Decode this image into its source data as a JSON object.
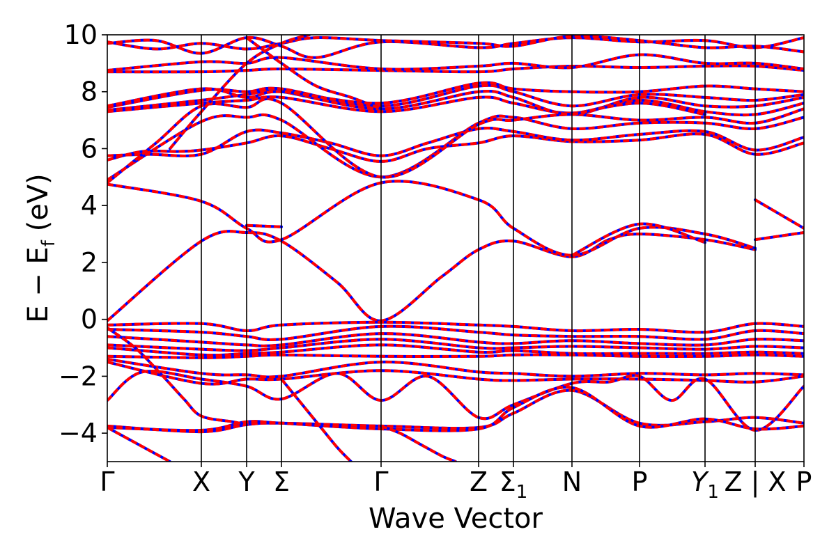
{
  "chart_data": {
    "type": "line",
    "title": "",
    "xlabel": "Wave Vector",
    "ylabel_main": "E − E",
    "ylabel_sub": "f",
    "ylabel_unit": "(eV)",
    "ylim": [
      -5,
      10
    ],
    "yticks": [
      {
        "value": -4,
        "label": "−4"
      },
      {
        "value": -2,
        "label": "−2"
      },
      {
        "value": 0,
        "label": "0"
      },
      {
        "value": 2,
        "label": "2"
      },
      {
        "value": 4,
        "label": "4"
      },
      {
        "value": 6,
        "label": "6"
      },
      {
        "value": 8,
        "label": "8"
      },
      {
        "value": 10,
        "label": "10"
      }
    ],
    "xlim": [
      0,
      1
    ],
    "xticks": [
      {
        "value": 0.0,
        "main": "Γ",
        "sub": ""
      },
      {
        "value": 0.135,
        "main": "X",
        "sub": ""
      },
      {
        "value": 0.2,
        "main": "Y",
        "sub": ""
      },
      {
        "value": 0.25,
        "main": "Σ",
        "sub": ""
      },
      {
        "value": 0.393,
        "main": "Γ",
        "sub": ""
      },
      {
        "value": 0.533,
        "main": "Z",
        "sub": ""
      },
      {
        "value": 0.583,
        "main": "Σ",
        "sub": "1"
      },
      {
        "value": 0.667,
        "main": "N",
        "sub": ""
      },
      {
        "value": 0.764,
        "main": "P",
        "sub": ""
      },
      {
        "value": 0.858,
        "main": "Y",
        "sub": "1",
        "italic": true
      },
      {
        "value": 0.93,
        "main": "Z | X",
        "sub": ""
      },
      {
        "value": 1.0,
        "main": "P",
        "sub": ""
      }
    ],
    "vlines": [
      0.135,
      0.2,
      0.25,
      0.393,
      0.533,
      0.583,
      0.667,
      0.764,
      0.858,
      0.93
    ],
    "colors": {
      "spin_up": "#ff0000",
      "spin_down": "#0000ff",
      "vline": "#000000",
      "axes": "#000000"
    },
    "series": [
      {
        "x": [
          0,
          0.135,
          0.2,
          0.25,
          0.33,
          0.393,
          0.48,
          0.533,
          0.583,
          0.667,
          0.72,
          0.764,
          0.858,
          0.93
        ],
        "y": [
          -0.05,
          2.75,
          3.05,
          2.75,
          1.3,
          -0.05,
          1.5,
          2.45,
          2.75,
          2.2,
          2.8,
          3.0,
          2.8,
          2.45
        ]
      },
      {
        "x": [
          0,
          0.135,
          0.2,
          0.25,
          0.393,
          0.533,
          0.583,
          0.667,
          0.764,
          0.858,
          0.93
        ],
        "y": [
          4.75,
          4.15,
          3.2,
          2.8,
          4.8,
          4.2,
          3.2,
          2.25,
          3.2,
          3.0,
          2.5
        ]
      },
      {
        "x": [
          0.2,
          0.25
        ],
        "y": [
          3.3,
          3.25
        ]
      },
      {
        "x": [
          0.667,
          0.764,
          0.858
        ],
        "y": [
          2.25,
          3.35,
          2.7
        ]
      },
      {
        "x": [
          0.93,
          1.0
        ],
        "y": [
          2.8,
          3.05
        ]
      },
      {
        "x": [
          0.93,
          1.0
        ],
        "y": [
          4.2,
          3.2
        ]
      },
      {
        "x": [
          0,
          0.135,
          0.2,
          0.25,
          0.393,
          0.533,
          0.583,
          0.667,
          0.764,
          0.858,
          0.93,
          1.0
        ],
        "y": [
          -0.2,
          -0.15,
          -0.4,
          -0.2,
          -0.1,
          -0.2,
          -0.25,
          -0.4,
          -0.35,
          -0.45,
          -0.15,
          -0.25
        ]
      },
      {
        "x": [
          0,
          0.135,
          0.2,
          0.25,
          0.393,
          0.533,
          0.583,
          0.667,
          0.764,
          0.858,
          0.93,
          1.0
        ],
        "y": [
          -0.35,
          -0.45,
          -0.6,
          -0.7,
          -0.25,
          -0.45,
          -0.55,
          -0.6,
          -0.6,
          -0.7,
          -0.4,
          -0.5
        ]
      },
      {
        "x": [
          0,
          0.135,
          0.2,
          0.25,
          0.393,
          0.533,
          0.583,
          0.667,
          0.764,
          0.858,
          0.93,
          1.0
        ],
        "y": [
          -0.6,
          -0.8,
          -0.9,
          -0.9,
          -0.5,
          -0.8,
          -0.85,
          -0.75,
          -0.85,
          -0.9,
          -0.7,
          -0.75
        ]
      },
      {
        "x": [
          0,
          0.135,
          0.2,
          0.25,
          0.393,
          0.533,
          0.583,
          0.667,
          0.764,
          0.858,
          0.93,
          1.0
        ],
        "y": [
          -0.9,
          -1.05,
          -1.1,
          -1.0,
          -0.7,
          -1.0,
          -1.0,
          -0.95,
          -1.0,
          -1.05,
          -0.95,
          -1.0
        ]
      },
      {
        "x": [
          0,
          0.135,
          0.2,
          0.25,
          0.393,
          0.533,
          0.583,
          0.667,
          0.764,
          0.858,
          0.93,
          1.0
        ],
        "y": [
          -1.0,
          -1.25,
          -1.2,
          -1.15,
          -0.9,
          -1.15,
          -1.1,
          -1.2,
          -1.2,
          -1.2,
          -1.15,
          -1.2
        ]
      },
      {
        "x": [
          0,
          0.135,
          0.2,
          0.25,
          0.393,
          0.533,
          0.583,
          0.667,
          0.764,
          0.858,
          0.93,
          1.0
        ],
        "y": [
          -1.3,
          -1.35,
          -1.3,
          -1.25,
          -1.3,
          -1.3,
          -1.25,
          -1.25,
          -1.3,
          -1.3,
          -1.25,
          -1.3
        ]
      },
      {
        "x": [
          0,
          0.135,
          0.2,
          0.25,
          0.393,
          0.533,
          0.583,
          0.667,
          0.764,
          0.858,
          0.93,
          1.0
        ],
        "y": [
          -1.4,
          -1.9,
          -1.95,
          -2.0,
          -1.5,
          -1.85,
          -1.9,
          -2.0,
          -1.9,
          -1.95,
          -1.9,
          -1.95
        ]
      },
      {
        "x": [
          0,
          0.135,
          0.2,
          0.25,
          0.393,
          0.533,
          0.583,
          0.667,
          0.764,
          0.858,
          0.93,
          1.0
        ],
        "y": [
          -1.5,
          -2.25,
          -2.1,
          -2.1,
          -1.8,
          -2.1,
          -2.15,
          -2.1,
          -2.1,
          -2.15,
          -2.2,
          -2.0
        ]
      },
      {
        "x": [
          0,
          0.05,
          0.135,
          0.2,
          0.25,
          0.33,
          0.393,
          0.46,
          0.533,
          0.583,
          0.667,
          0.72,
          0.764,
          0.81,
          0.858,
          0.93,
          1.0
        ],
        "y": [
          -2.85,
          -1.85,
          -2.1,
          -2.35,
          -2.8,
          -1.9,
          -2.85,
          -2.0,
          -3.45,
          -3.0,
          -2.25,
          -2.2,
          -2.0,
          -2.85,
          -2.1,
          -3.9,
          -2.35
        ]
      },
      {
        "x": [
          0,
          0.135,
          0.2,
          0.25,
          0.393,
          0.533,
          0.583,
          0.667,
          0.764,
          0.858,
          0.93,
          1.0
        ],
        "y": [
          -3.75,
          -3.95,
          -3.7,
          -3.65,
          -3.75,
          -3.8,
          -3.3,
          -2.5,
          -3.65,
          -3.6,
          -3.45,
          -3.65
        ]
      },
      {
        "x": [
          0,
          0.135,
          0.2,
          0.25,
          0.393,
          0.533,
          0.583,
          0.667,
          0.764,
          0.858,
          0.93,
          1.0
        ],
        "y": [
          -3.8,
          -3.9,
          -3.6,
          -3.65,
          -3.85,
          -3.85,
          -3.1,
          -2.4,
          -3.75,
          -3.5,
          -3.85,
          -3.75
        ]
      },
      {
        "x": [
          0,
          0.04,
          0.08,
          0.11,
          0.135,
          0.18,
          0.2
        ],
        "y": [
          -0.3,
          -1.0,
          -2.0,
          -2.8,
          -3.4,
          -3.6,
          -3.7
        ]
      },
      {
        "x": [
          0.393,
          0.42,
          0.45,
          0.48,
          0.5
        ],
        "y": [
          -3.75,
          -4.0,
          -4.4,
          -4.8,
          -5.0
        ]
      },
      {
        "x": [
          0.25,
          0.3,
          0.33,
          0.35
        ],
        "y": [
          -2.1,
          -3.6,
          -4.5,
          -5.0
        ]
      },
      {
        "x": [
          0,
          0.06,
          0.09
        ],
        "y": [
          -3.8,
          -4.6,
          -5.0
        ]
      },
      {
        "x": [
          0,
          0.05,
          0.1,
          0.135,
          0.2,
          0.25,
          0.32,
          0.393,
          0.46,
          0.533,
          0.583,
          0.667,
          0.764,
          0.858,
          0.93,
          1.0
        ],
        "y": [
          5.6,
          5.9,
          5.9,
          5.95,
          6.2,
          6.45,
          6.0,
          5.55,
          6.0,
          6.2,
          6.45,
          6.25,
          6.3,
          6.5,
          5.8,
          6.2
        ]
      },
      {
        "x": [
          0,
          0.06,
          0.135,
          0.2,
          0.25,
          0.32,
          0.393,
          0.46,
          0.533,
          0.583,
          0.667,
          0.764,
          0.858,
          0.93,
          1.0
        ],
        "y": [
          5.75,
          5.8,
          5.8,
          6.6,
          6.55,
          6.2,
          5.75,
          6.2,
          6.7,
          6.6,
          6.3,
          6.5,
          6.6,
          5.95,
          6.4
        ]
      },
      {
        "x": [
          0,
          0.135,
          0.2,
          0.25,
          0.393,
          0.533,
          0.583,
          0.667,
          0.764,
          0.858,
          0.93,
          1.0
        ],
        "y": [
          4.9,
          6.95,
          7.1,
          7.0,
          5.0,
          6.9,
          7.1,
          6.7,
          6.9,
          6.9,
          6.7,
          7.1
        ]
      },
      {
        "x": [
          0,
          0.07,
          0.135,
          0.2,
          0.25,
          0.393,
          0.533,
          0.583,
          0.667,
          0.764,
          0.858,
          0.93,
          1.0
        ],
        "y": [
          4.8,
          6.2,
          7.5,
          7.45,
          7.6,
          5.0,
          6.85,
          7.0,
          7.2,
          7.0,
          7.1,
          6.9,
          7.4
        ]
      },
      {
        "x": [
          0,
          0.135,
          0.2,
          0.25,
          0.393,
          0.533,
          0.583,
          0.667,
          0.764,
          0.858,
          0.93,
          1.0
        ],
        "y": [
          7.3,
          7.6,
          7.7,
          7.8,
          7.3,
          7.8,
          7.6,
          7.25,
          7.7,
          7.3,
          7.2,
          7.6
        ]
      },
      {
        "x": [
          0,
          0.135,
          0.2,
          0.25,
          0.393,
          0.533,
          0.583,
          0.667,
          0.764,
          0.858,
          0.93,
          1.0
        ],
        "y": [
          7.35,
          7.7,
          7.9,
          8.0,
          7.4,
          8.0,
          7.8,
          7.2,
          7.8,
          7.5,
          7.5,
          7.8
        ]
      },
      {
        "x": [
          0,
          0.135,
          0.2,
          0.25,
          0.393,
          0.533,
          0.583,
          0.667,
          0.764,
          0.858,
          0.93,
          1.0
        ],
        "y": [
          7.45,
          8.05,
          8.0,
          8.1,
          7.5,
          8.2,
          8.0,
          7.5,
          7.9,
          7.8,
          7.7,
          7.9
        ]
      },
      {
        "x": [
          0,
          0.135,
          0.2,
          0.25,
          0.393,
          0.533,
          0.583,
          0.667,
          0.764,
          0.858,
          0.93,
          1.0
        ],
        "y": [
          7.5,
          8.1,
          7.8,
          8.0,
          7.6,
          8.3,
          8.1,
          8.0,
          8.0,
          8.2,
          8.1,
          8.0
        ]
      },
      {
        "x": [
          0,
          0.135,
          0.2,
          0.25,
          0.393,
          0.533,
          0.583,
          0.667,
          0.764,
          0.858,
          0.93,
          1.0
        ],
        "y": [
          8.7,
          8.7,
          8.75,
          8.8,
          8.75,
          8.7,
          8.8,
          8.9,
          8.85,
          8.9,
          8.9,
          8.75
        ]
      },
      {
        "x": [
          0,
          0.135,
          0.2,
          0.25,
          0.393,
          0.533,
          0.583,
          0.667,
          0.764,
          0.858,
          0.93,
          1.0
        ],
        "y": [
          8.75,
          9.05,
          9.0,
          9.2,
          8.8,
          8.9,
          9.0,
          8.85,
          9.3,
          9.0,
          9.0,
          8.8
        ]
      },
      {
        "x": [
          0,
          0.07,
          0.135,
          0.2,
          0.25,
          0.3,
          0.393,
          0.533,
          0.583,
          0.667,
          0.764,
          0.858,
          0.93,
          1.0
        ],
        "y": [
          9.7,
          9.8,
          9.35,
          9.9,
          9.6,
          9.2,
          9.75,
          9.55,
          9.7,
          9.9,
          9.75,
          9.8,
          9.55,
          9.9
        ]
      },
      {
        "x": [
          0,
          0.07,
          0.135,
          0.2,
          0.25,
          0.3,
          0.393,
          0.533,
          0.583,
          0.667,
          0.764,
          0.858,
          0.93,
          1.0
        ],
        "y": [
          9.75,
          9.5,
          9.7,
          9.5,
          9.7,
          9.9,
          9.8,
          9.7,
          9.6,
          9.95,
          9.8,
          9.55,
          9.6,
          9.4
        ]
      },
      {
        "x": [
          0.09,
          0.135,
          0.2,
          0.25,
          0.29
        ],
        "y": [
          6.0,
          7.3,
          9.0,
          9.7,
          10.0
        ]
      },
      {
        "x": [
          0.2,
          0.25,
          0.3,
          0.35,
          0.393
        ],
        "y": [
          9.9,
          9.0,
          8.2,
          7.8,
          7.4
        ]
      },
      {
        "x": [
          0.667,
          0.764,
          0.858
        ],
        "y": [
          7.2,
          7.6,
          7.2
        ]
      }
    ]
  }
}
